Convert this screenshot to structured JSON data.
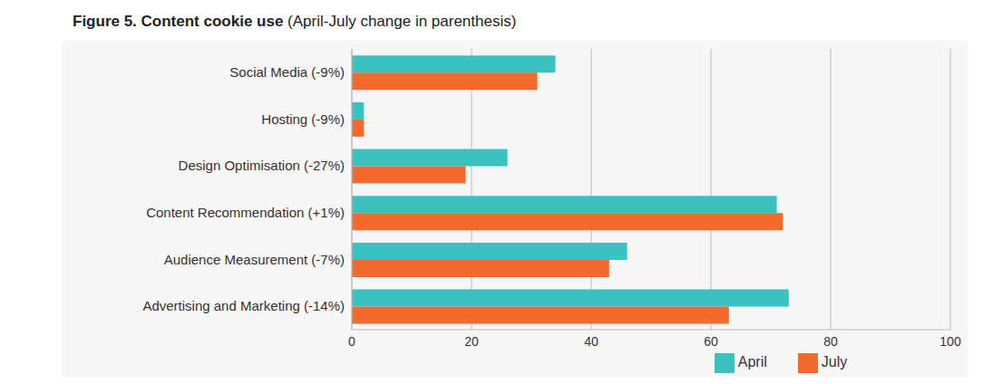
{
  "chart_data": {
    "type": "bar",
    "title": "Figure 5. Content cookie use",
    "subtitle": "(April-July change in parenthesis)",
    "orientation": "horizontal",
    "categories": [
      "Social Media (-9%)",
      "Hosting (-9%)",
      "Design Optimisation (-27%)",
      "Content Recommendation (+1%)",
      "Audience Measurement (-7%)",
      "Advertising and Marketing (-14%)"
    ],
    "series": [
      {
        "name": "April",
        "color": "#3cc1c1",
        "values": [
          34,
          2,
          26,
          71,
          46,
          73
        ]
      },
      {
        "name": "July",
        "color": "#f26a2e",
        "values": [
          31,
          2,
          19,
          72,
          43,
          63
        ]
      }
    ],
    "xlim": [
      0,
      100
    ],
    "xticks": [
      0,
      20,
      40,
      60,
      80,
      100
    ],
    "grid": true,
    "legend": "bottom"
  }
}
